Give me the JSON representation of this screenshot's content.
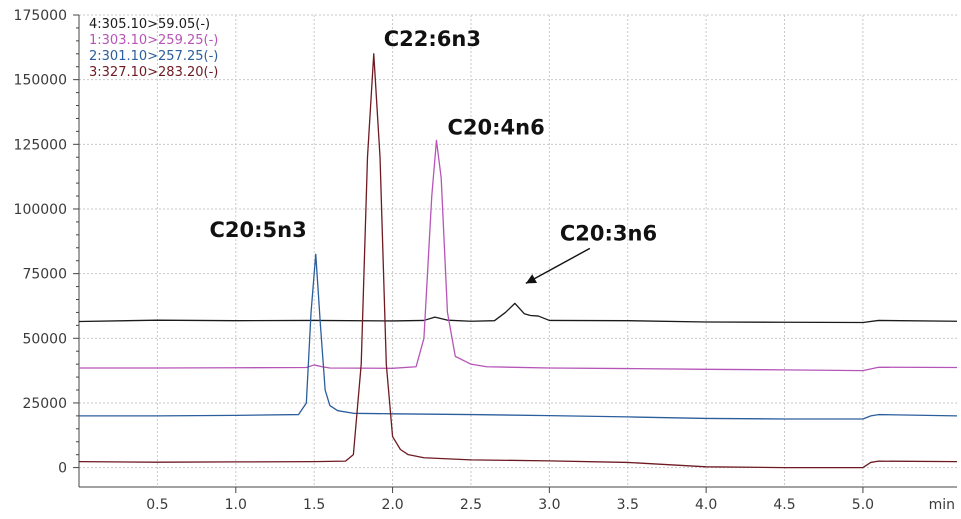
{
  "chart_data": {
    "type": "line",
    "title": "",
    "xlabel": "",
    "ylabel": "",
    "x_unit_label": "min",
    "xlim": [
      0,
      5.6
    ],
    "ylim": [
      -7500,
      175000
    ],
    "grid": true,
    "legend_position": "top-left",
    "x_ticks": [
      {
        "value": 0.5,
        "label": "0.5"
      },
      {
        "value": 1.0,
        "label": "1.0"
      },
      {
        "value": 1.5,
        "label": "1.5"
      },
      {
        "value": 2.0,
        "label": "2.0"
      },
      {
        "value": 2.5,
        "label": "2.5"
      },
      {
        "value": 3.0,
        "label": "3.0"
      },
      {
        "value": 3.5,
        "label": "3.5"
      },
      {
        "value": 4.0,
        "label": "4.0"
      },
      {
        "value": 4.5,
        "label": "4.5"
      },
      {
        "value": 5.0,
        "label": "5.0"
      }
    ],
    "y_ticks": [
      {
        "value": 0,
        "label": "0"
      },
      {
        "value": 25000,
        "label": "25000"
      },
      {
        "value": 50000,
        "label": "50000"
      },
      {
        "value": 75000,
        "label": "75000"
      },
      {
        "value": 100000,
        "label": "100000"
      },
      {
        "value": 125000,
        "label": "125000"
      },
      {
        "value": 150000,
        "label": "150000"
      },
      {
        "value": 175000,
        "label": "175000"
      }
    ],
    "series": [
      {
        "name": "4:305.10>59.05(-)",
        "color": "#1a1a1a",
        "x": [
          0.0,
          0.5,
          1.0,
          1.5,
          2.0,
          2.2,
          2.27,
          2.35,
          2.5,
          2.65,
          2.72,
          2.78,
          2.84,
          2.88,
          2.93,
          3.0,
          3.5,
          4.0,
          4.5,
          5.0,
          5.1,
          5.6
        ],
        "values": [
          56500,
          57000,
          56800,
          56900,
          56700,
          56900,
          58200,
          57000,
          56600,
          56800,
          60000,
          63500,
          59500,
          58800,
          58600,
          56900,
          56800,
          56300,
          56200,
          56100,
          56900,
          56600
        ]
      },
      {
        "name": "1:303.10>259.25(-)",
        "color": "#b655b8",
        "x": [
          0.0,
          0.5,
          1.0,
          1.45,
          1.5,
          1.55,
          1.6,
          2.0,
          2.15,
          2.2,
          2.25,
          2.28,
          2.31,
          2.35,
          2.4,
          2.5,
          2.6,
          3.0,
          3.5,
          4.0,
          4.5,
          5.0,
          5.1,
          5.6
        ],
        "values": [
          38500,
          38500,
          38600,
          38700,
          39700,
          39000,
          38500,
          38400,
          39000,
          50000,
          105000,
          126500,
          112000,
          60000,
          43000,
          40000,
          39000,
          38500,
          38300,
          38000,
          37800,
          37500,
          38800,
          38700
        ]
      },
      {
        "name": "2:301.10>257.25(-)",
        "color": "#2b5e9c",
        "x": [
          0.0,
          0.5,
          1.0,
          1.4,
          1.45,
          1.48,
          1.51,
          1.54,
          1.57,
          1.6,
          1.65,
          1.75,
          2.0,
          2.5,
          3.0,
          3.5,
          4.0,
          4.5,
          5.0,
          5.05,
          5.1,
          5.6
        ],
        "values": [
          20000,
          20000,
          20200,
          20500,
          25000,
          60000,
          82500,
          55000,
          30000,
          24000,
          22000,
          21000,
          20800,
          20500,
          20100,
          19600,
          19000,
          18800,
          18800,
          20000,
          20500,
          20000
        ]
      },
      {
        "name": "3:327.10>283.20(-)",
        "color": "#6e1a22",
        "x": [
          0.0,
          0.5,
          1.0,
          1.5,
          1.7,
          1.75,
          1.8,
          1.84,
          1.88,
          1.92,
          1.96,
          2.0,
          2.05,
          2.1,
          2.2,
          2.5,
          3.0,
          3.5,
          4.0,
          4.5,
          5.0,
          5.05,
          5.1,
          5.6
        ],
        "values": [
          2300,
          2100,
          2200,
          2300,
          2500,
          5000,
          40000,
          120000,
          160000,
          120000,
          40000,
          12000,
          7000,
          5000,
          3800,
          3000,
          2600,
          2000,
          300,
          0,
          0,
          2000,
          2500,
          2300
        ]
      }
    ],
    "annotations": [
      {
        "text": "C22:6n3",
        "x": 1.88,
        "y": 160000,
        "color": "#111111",
        "arrow": false
      },
      {
        "text": "C20:4n6",
        "x": 2.28,
        "y": 126500,
        "color": "#111111",
        "arrow": false
      },
      {
        "text": "C20:5n3",
        "x": 1.51,
        "y": 82500,
        "color": "#111111",
        "arrow": false
      },
      {
        "text": "C20:3n6",
        "x": 2.78,
        "y": 63500,
        "color": "#111111",
        "arrow": true
      }
    ]
  }
}
